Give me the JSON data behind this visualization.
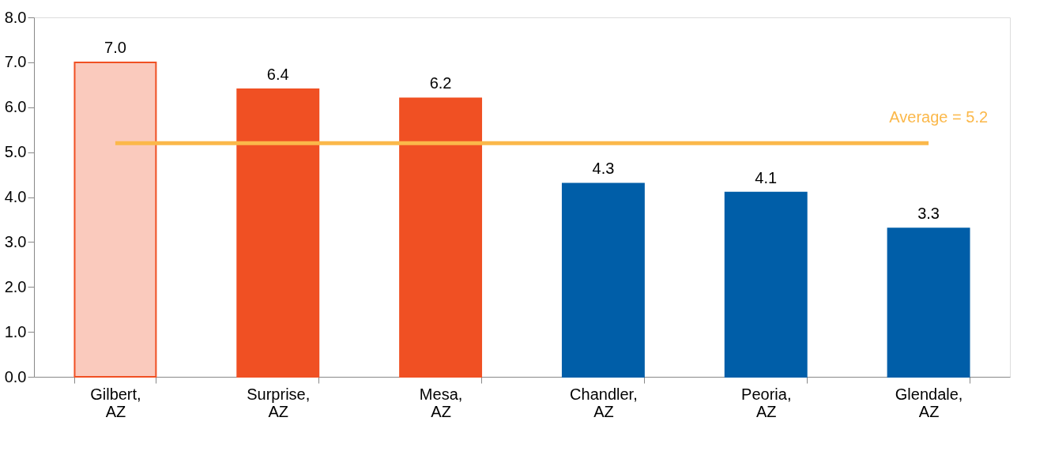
{
  "chart_data": {
    "type": "bar",
    "categories": [
      "Gilbert,\nAZ",
      "Surprise,\nAZ",
      "Mesa,\nAZ",
      "Chandler,\nAZ",
      "Peoria,\nAZ",
      "Glendale,\nAZ"
    ],
    "values": [
      7.0,
      6.4,
      6.2,
      4.3,
      4.1,
      3.3
    ],
    "colors": [
      "#f05023",
      "#f05023",
      "#f05023",
      "#005ea8",
      "#005ea8",
      "#005ea8"
    ],
    "ylim": [
      0,
      8
    ],
    "yticks": [
      {
        "value": 0,
        "label": "0.0"
      },
      {
        "value": 1,
        "label": "1.0"
      },
      {
        "value": 2,
        "label": "2.0"
      },
      {
        "value": 3,
        "label": "3.0"
      },
      {
        "value": 4,
        "label": "4.0"
      },
      {
        "value": 5,
        "label": "5.0"
      },
      {
        "value": 6,
        "label": "6.0"
      },
      {
        "value": 7,
        "label": "7.0"
      },
      {
        "value": 8,
        "label": "8.0"
      }
    ],
    "value_labels": [
      "7.0",
      "6.4",
      "6.2",
      "4.3",
      "4.1",
      "3.3"
    ],
    "grid": false,
    "ref_lines": [
      {
        "axis": "y",
        "value": 5.2,
        "label": "Average = 5.2",
        "color": "#fbb84a"
      }
    ]
  }
}
